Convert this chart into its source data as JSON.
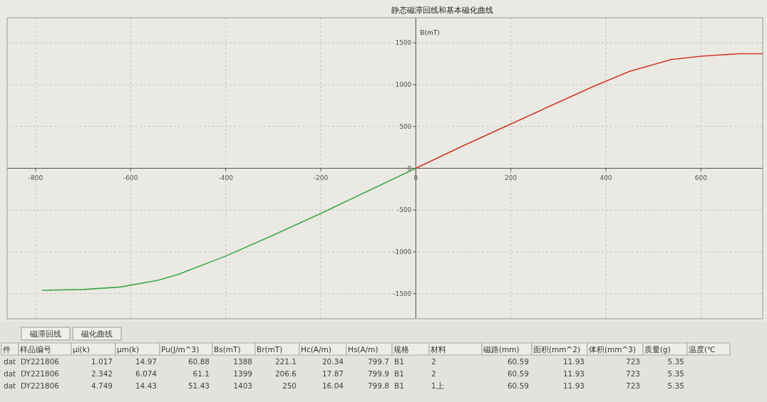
{
  "chart_data": {
    "type": "line",
    "title": "静态磁滞回线和基本磁化曲线",
    "ylabel": "B(mT)",
    "xlim": [
      -860,
      730
    ],
    "ylim": [
      -1800,
      1800
    ],
    "xticks": [
      -800,
      -600,
      -400,
      -200,
      0,
      200,
      400,
      600
    ],
    "yticks": [
      -1500,
      -1000,
      -500,
      0,
      500,
      1000,
      1500
    ],
    "grid": true,
    "marker": "none",
    "line_style": "solid",
    "series": [
      {
        "color": "#d03a2a",
        "x": [
          0,
          100,
          200,
          300,
          378,
          450,
          537,
          600,
          680,
          730
        ],
        "values": [
          0,
          270,
          530,
          790,
          990,
          1160,
          1300,
          1340,
          1370,
          1370
        ]
      },
      {
        "color": "#3da84a",
        "x": [
          0,
          -100,
          -200,
          -300,
          -400,
          -500,
          -543,
          -622,
          -700,
          -787
        ],
        "values": [
          0,
          -270,
          -540,
          -800,
          -1050,
          -1270,
          -1340,
          -1420,
          -1450,
          -1460
        ]
      }
    ],
    "annotations": [
      "磁滞回线",
      "磁化曲线",
      "件",
      "样品编号",
      "μi(k)",
      "μm(k)",
      "Pu(J/m^3)",
      "Bs(mT)",
      "Br(mT)",
      "Hc(A/m)",
      "Hs(A/m)",
      "规格",
      "材料",
      "磁路(mm)",
      "面积(mm^2)",
      "体积(mm^3)",
      "质量(g)",
      "温度(℃",
      "dat",
      "DY221806",
      "1.017",
      "14.97",
      "60.88",
      "1388",
      "221.1",
      "20.34",
      "799.7",
      "B1",
      "2",
      "60.59",
      "11.93",
      "723",
      "5.35",
      "dat",
      "DY221806",
      "2.342",
      "6.074",
      "61.1",
      "1399",
      "206.6",
      "17.87",
      "799.9",
      "B1",
      "2",
      "60.59",
      "11.93",
      "723",
      "5.35",
      "dat",
      "DY221806",
      "4.749",
      "14.43",
      "51.43",
      "1403",
      "250",
      "16.04",
      "799.8",
      "B1",
      "1上",
      "60.59",
      "11.93",
      "723",
      "5.35"
    ]
  }
}
